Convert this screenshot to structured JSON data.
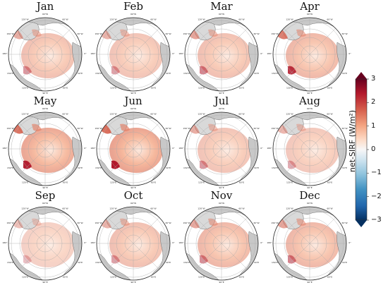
{
  "panels": [
    {
      "month": "Jan",
      "intensity": 0.45,
      "hotspot": 0.35
    },
    {
      "month": "Feb",
      "intensity": 0.4,
      "hotspot": 0.3
    },
    {
      "month": "Mar",
      "intensity": 0.45,
      "hotspot": 0.45
    },
    {
      "month": "Apr",
      "intensity": 0.55,
      "hotspot": 0.85
    },
    {
      "month": "May",
      "intensity": 0.75,
      "hotspot": 0.95
    },
    {
      "month": "Jun",
      "intensity": 0.8,
      "hotspot": 1.0
    },
    {
      "month": "Jul",
      "intensity": 0.4,
      "hotspot": 0.35
    },
    {
      "month": "Aug",
      "intensity": 0.35,
      "hotspot": 0.25
    },
    {
      "month": "Sep",
      "intensity": 0.25,
      "hotspot": 0.15
    },
    {
      "month": "Oct",
      "intensity": 0.45,
      "hotspot": 0.3
    },
    {
      "month": "Nov",
      "intensity": 0.55,
      "hotspot": 0.4
    },
    {
      "month": "Dec",
      "intensity": 0.55,
      "hotspot": 0.45
    }
  ],
  "colorbar": {
    "label": "net-SIRF (W/m²)",
    "ticks": [
      "3",
      "2",
      "1",
      "0",
      "−1",
      "−2",
      "−3"
    ],
    "range": [
      -3,
      3
    ],
    "colors": [
      "#67001f",
      "#b2182b",
      "#d6604d",
      "#f4a582",
      "#fddbc7",
      "#f7f7f7",
      "#d1e5f0",
      "#92c5de",
      "#4393c3",
      "#2166ac",
      "#053061"
    ]
  },
  "map_labels": {
    "lon": [
      "90°W",
      "120°W",
      "60°W",
      "150°W",
      "30°W",
      "180°",
      "0°",
      "150°E",
      "30°E",
      "120°E",
      "60°E",
      "90°E"
    ]
  }
}
